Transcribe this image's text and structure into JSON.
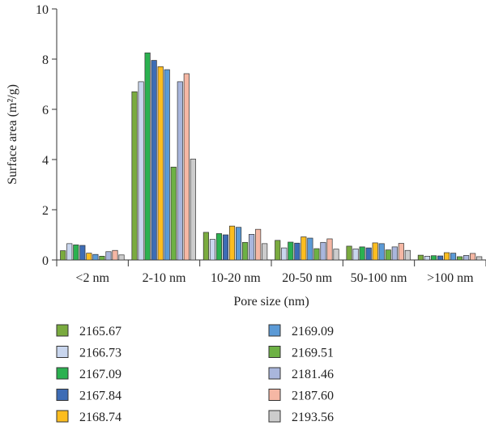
{
  "chart_data": {
    "type": "bar",
    "xlabel": "Pore size (nm)",
    "ylabel": "Surface area (m²/g)",
    "ylim": [
      0,
      10
    ],
    "yticks": [
      "0",
      "2",
      "4",
      "6",
      "8",
      "10"
    ],
    "categories": [
      "<2 nm",
      "2-10 nm",
      "10-20 nm",
      "20-50 nm",
      "50-100 nm",
      ">100 nm"
    ],
    "legend_placement": "bottom",
    "grid": false,
    "series": [
      {
        "name": "2165.67",
        "color": "#7aab3f",
        "values": [
          0.37,
          6.7,
          1.1,
          0.78,
          0.55,
          0.19
        ]
      },
      {
        "name": "2166.73",
        "color": "#c9d6ee",
        "values": [
          0.65,
          7.1,
          0.82,
          0.48,
          0.44,
          0.15
        ]
      },
      {
        "name": "2167.09",
        "color": "#2bb150",
        "values": [
          0.6,
          8.25,
          1.05,
          0.71,
          0.52,
          0.17
        ]
      },
      {
        "name": "2167.84",
        "color": "#3d6cb5",
        "values": [
          0.58,
          7.95,
          1.0,
          0.67,
          0.48,
          0.16
        ]
      },
      {
        "name": "2168.74",
        "color": "#fcbd1f",
        "values": [
          0.27,
          7.7,
          1.35,
          0.92,
          0.68,
          0.29
        ]
      },
      {
        "name": "2169.09",
        "color": "#5b9ad6",
        "values": [
          0.22,
          7.58,
          1.3,
          0.87,
          0.65,
          0.27
        ]
      },
      {
        "name": "2169.51",
        "color": "#6db144",
        "values": [
          0.15,
          3.7,
          0.7,
          0.45,
          0.4,
          0.13
        ]
      },
      {
        "name": "2181.46",
        "color": "#a9b6dc",
        "values": [
          0.33,
          7.1,
          1.02,
          0.7,
          0.52,
          0.18
        ]
      },
      {
        "name": "2187.60",
        "color": "#f5b7a4",
        "values": [
          0.38,
          7.42,
          1.22,
          0.84,
          0.66,
          0.26
        ]
      },
      {
        "name": "2193.56",
        "color": "#cccccc",
        "values": [
          0.2,
          4.02,
          0.65,
          0.43,
          0.38,
          0.13
        ]
      }
    ]
  }
}
